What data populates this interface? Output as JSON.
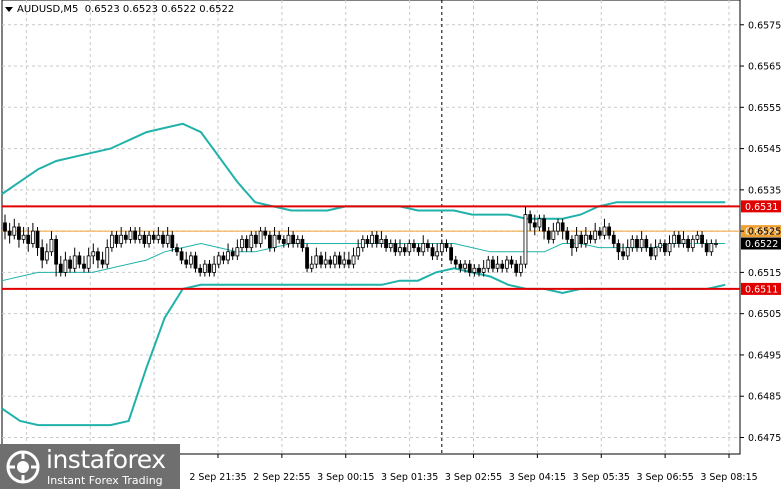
{
  "header": {
    "symbol": "AUDUSD,M5",
    "ohlc": "0.6523 0.6523 0.6522 0.6522"
  },
  "colors": {
    "background": "#ffffff",
    "grid": "#c9c9c9",
    "axis": "#000000",
    "bands": "#20b2aa",
    "candle_bull": "#ffffff",
    "candle_bear": "#000000",
    "level_red": "#e00000",
    "level_orange": "#f0a030",
    "logo_bg": "#6f6f6f"
  },
  "logo": {
    "name": "instaforex",
    "tagline": "Instant Forex Trading",
    "icon": "instaforex-logo-icon"
  },
  "chart_data": {
    "type": "candlestick",
    "timeframe": "M5",
    "ylim": [
      0.6471,
      0.6581
    ],
    "y_ticks": [
      "0.6575",
      "0.6565",
      "0.6555",
      "0.6545",
      "0.6535",
      "0.6525",
      "0.6515",
      "0.6505",
      "0.6495",
      "0.6485",
      "0.6475"
    ],
    "x_ticks": [
      "2 Sep 21:35",
      "2 Sep 22:55",
      "3 Sep 00:15",
      "3 Sep 01:35",
      "3 Sep 02:55",
      "3 Sep 04:15",
      "3 Sep 05:35",
      "3 Sep 06:55",
      "3 Sep 08:15"
    ],
    "levels": [
      {
        "price": 0.6531,
        "label": "0.6531",
        "style": "line",
        "color": "#e00000"
      },
      {
        "price": 0.6525,
        "label": "0.6525",
        "style": "thin",
        "color": "#f0a030"
      },
      {
        "price": 0.6511,
        "label": "0.6511",
        "style": "line",
        "color": "#e00000"
      }
    ],
    "current_price": {
      "price": 0.6522,
      "label": "0.6522"
    },
    "vertical_marker_index": 94,
    "bollinger": {
      "upper": [
        0.6534,
        0.6537,
        0.654,
        0.6542,
        0.6543,
        0.6544,
        0.6545,
        0.6547,
        0.6549,
        0.655,
        0.6551,
        0.6549,
        0.6543,
        0.6537,
        0.6532,
        0.6531,
        0.653,
        0.653,
        0.653,
        0.6531,
        0.6531,
        0.6531,
        0.6531,
        0.653,
        0.653,
        0.653,
        0.6529,
        0.6529,
        0.6529,
        0.6528,
        0.6528,
        0.6528,
        0.6529,
        0.6531,
        0.6532,
        0.6532,
        0.6532,
        0.6532,
        0.6532,
        0.6532,
        0.6532
      ],
      "middle": [
        0.6513,
        0.6514,
        0.6515,
        0.6515,
        0.6515,
        0.6515,
        0.6516,
        0.6517,
        0.6518,
        0.652,
        0.6521,
        0.6522,
        0.6521,
        0.652,
        0.652,
        0.6521,
        0.6522,
        0.6522,
        0.6522,
        0.6522,
        0.6522,
        0.6522,
        0.6522,
        0.6522,
        0.6522,
        0.6522,
        0.6521,
        0.652,
        0.652,
        0.652,
        0.652,
        0.6522,
        0.6522,
        0.6521,
        0.6521,
        0.6521,
        0.6521,
        0.6522,
        0.6522,
        0.6522,
        0.6522
      ],
      "lower": [
        0.6482,
        0.6479,
        0.6478,
        0.6478,
        0.6478,
        0.6478,
        0.6478,
        0.6479,
        0.6492,
        0.6504,
        0.6511,
        0.6512,
        0.6512,
        0.6512,
        0.6512,
        0.6512,
        0.6512,
        0.6512,
        0.6512,
        0.6512,
        0.6512,
        0.6512,
        0.6513,
        0.6513,
        0.6515,
        0.6516,
        0.6515,
        0.6514,
        0.6512,
        0.6511,
        0.6511,
        0.651,
        0.6511,
        0.6511,
        0.6511,
        0.6511,
        0.6511,
        0.6511,
        0.6511,
        0.6511,
        0.6512
      ]
    },
    "candles": [
      [
        0.6527,
        0.6525,
        0.6529,
        0.6523
      ],
      [
        0.6525,
        0.6524,
        0.6527,
        0.6522
      ],
      [
        0.6524,
        0.6526,
        0.6528,
        0.6523
      ],
      [
        0.6526,
        0.6523,
        0.6527,
        0.6521
      ],
      [
        0.6523,
        0.6524,
        0.6526,
        0.6522
      ],
      [
        0.6524,
        0.6522,
        0.6526,
        0.652
      ],
      [
        0.6522,
        0.6525,
        0.6527,
        0.6521
      ],
      [
        0.6525,
        0.6521,
        0.6526,
        0.6519
      ],
      [
        0.6521,
        0.6518,
        0.6523,
        0.6516
      ],
      [
        0.6518,
        0.652,
        0.6522,
        0.6517
      ],
      [
        0.652,
        0.6523,
        0.6525,
        0.6519
      ],
      [
        0.6523,
        0.6517,
        0.6524,
        0.6514
      ],
      [
        0.6517,
        0.6515,
        0.6519,
        0.6514
      ],
      [
        0.6515,
        0.6518,
        0.652,
        0.6514
      ],
      [
        0.6518,
        0.6516,
        0.6519,
        0.6515
      ],
      [
        0.6516,
        0.6519,
        0.6521,
        0.6515
      ],
      [
        0.6519,
        0.6517,
        0.652,
        0.6516
      ],
      [
        0.6517,
        0.6516,
        0.6519,
        0.6515
      ],
      [
        0.6516,
        0.6519,
        0.6521,
        0.6515
      ],
      [
        0.6519,
        0.652,
        0.6522,
        0.6517
      ],
      [
        0.652,
        0.6518,
        0.6521,
        0.6516
      ],
      [
        0.6518,
        0.6517,
        0.652,
        0.6516
      ],
      [
        0.6517,
        0.6521,
        0.6523,
        0.6516
      ],
      [
        0.6521,
        0.6524,
        0.6525,
        0.652
      ],
      [
        0.6524,
        0.6522,
        0.6525,
        0.6521
      ],
      [
        0.6522,
        0.6524,
        0.6526,
        0.6521
      ],
      [
        0.6524,
        0.6523,
        0.6525,
        0.6522
      ],
      [
        0.6523,
        0.6525,
        0.6526,
        0.6522
      ],
      [
        0.6525,
        0.6523,
        0.6526,
        0.6522
      ],
      [
        0.6523,
        0.6524,
        0.6526,
        0.6522
      ],
      [
        0.6524,
        0.6522,
        0.6525,
        0.6521
      ],
      [
        0.6522,
        0.6524,
        0.6525,
        0.6521
      ],
      [
        0.6524,
        0.6523,
        0.6525,
        0.6522
      ],
      [
        0.6523,
        0.6524,
        0.6526,
        0.6522
      ],
      [
        0.6524,
        0.6522,
        0.6525,
        0.6521
      ],
      [
        0.6522,
        0.6524,
        0.6526,
        0.6521
      ],
      [
        0.6524,
        0.6521,
        0.6525,
        0.652
      ],
      [
        0.6521,
        0.652,
        0.6522,
        0.6519
      ],
      [
        0.652,
        0.6518,
        0.6521,
        0.6517
      ],
      [
        0.6518,
        0.6517,
        0.652,
        0.6516
      ],
      [
        0.6517,
        0.6519,
        0.652,
        0.6516
      ],
      [
        0.6519,
        0.6516,
        0.652,
        0.6515
      ],
      [
        0.6516,
        0.6515,
        0.6517,
        0.6514
      ],
      [
        0.6515,
        0.6517,
        0.6518,
        0.6514
      ],
      [
        0.6517,
        0.6515,
        0.6518,
        0.6514
      ],
      [
        0.6515,
        0.6517,
        0.6519,
        0.6514
      ],
      [
        0.6517,
        0.6519,
        0.652,
        0.6516
      ],
      [
        0.6519,
        0.6518,
        0.652,
        0.6517
      ],
      [
        0.6518,
        0.652,
        0.6522,
        0.6517
      ],
      [
        0.652,
        0.6519,
        0.6521,
        0.6518
      ],
      [
        0.6519,
        0.6521,
        0.6523,
        0.6518
      ],
      [
        0.6521,
        0.6523,
        0.6524,
        0.652
      ],
      [
        0.6523,
        0.6521,
        0.6524,
        0.652
      ],
      [
        0.6521,
        0.6524,
        0.6525,
        0.652
      ],
      [
        0.6524,
        0.6522,
        0.6525,
        0.6521
      ],
      [
        0.6522,
        0.6525,
        0.6526,
        0.6521
      ],
      [
        0.6525,
        0.6524,
        0.6526,
        0.6523
      ],
      [
        0.6524,
        0.6521,
        0.6525,
        0.652
      ],
      [
        0.6521,
        0.6524,
        0.6526,
        0.652
      ],
      [
        0.6524,
        0.6523,
        0.6525,
        0.6522
      ],
      [
        0.6523,
        0.6522,
        0.6524,
        0.6521
      ],
      [
        0.6522,
        0.6524,
        0.6526,
        0.6521
      ],
      [
        0.6524,
        0.6522,
        0.6525,
        0.6521
      ],
      [
        0.6522,
        0.6523,
        0.6524,
        0.6521
      ],
      [
        0.6523,
        0.6521,
        0.6524,
        0.652
      ],
      [
        0.6521,
        0.6516,
        0.6522,
        0.6515
      ],
      [
        0.6516,
        0.6517,
        0.6519,
        0.6515
      ],
      [
        0.6517,
        0.6519,
        0.6521,
        0.6516
      ],
      [
        0.6519,
        0.6517,
        0.652,
        0.6516
      ],
      [
        0.6517,
        0.6518,
        0.652,
        0.6516
      ],
      [
        0.6518,
        0.6517,
        0.6519,
        0.6516
      ],
      [
        0.6517,
        0.6519,
        0.652,
        0.6516
      ],
      [
        0.6519,
        0.6517,
        0.652,
        0.6516
      ],
      [
        0.6517,
        0.6518,
        0.652,
        0.6516
      ],
      [
        0.6518,
        0.6517,
        0.652,
        0.6516
      ],
      [
        0.6517,
        0.6519,
        0.6521,
        0.6516
      ],
      [
        0.6519,
        0.6521,
        0.6523,
        0.6518
      ],
      [
        0.6521,
        0.6523,
        0.6524,
        0.652
      ],
      [
        0.6523,
        0.6522,
        0.6524,
        0.6521
      ],
      [
        0.6522,
        0.6524,
        0.6525,
        0.6521
      ],
      [
        0.6524,
        0.6522,
        0.6525,
        0.6521
      ],
      [
        0.6522,
        0.6523,
        0.6525,
        0.6521
      ],
      [
        0.6523,
        0.6521,
        0.6524,
        0.652
      ],
      [
        0.6521,
        0.6522,
        0.6523,
        0.652
      ],
      [
        0.6522,
        0.652,
        0.6523,
        0.6519
      ],
      [
        0.652,
        0.6521,
        0.6523,
        0.6519
      ],
      [
        0.6521,
        0.652,
        0.6522,
        0.6519
      ],
      [
        0.652,
        0.6522,
        0.6523,
        0.6519
      ],
      [
        0.6522,
        0.6521,
        0.6523,
        0.652
      ],
      [
        0.6521,
        0.652,
        0.6522,
        0.6519
      ],
      [
        0.652,
        0.6522,
        0.6524,
        0.6519
      ],
      [
        0.6522,
        0.6521,
        0.6523,
        0.652
      ],
      [
        0.6521,
        0.6519,
        0.6522,
        0.6518
      ],
      [
        0.6519,
        0.652,
        0.6522,
        0.6518
      ],
      [
        0.652,
        0.6522,
        0.6523,
        0.6519
      ],
      [
        0.6522,
        0.6521,
        0.6523,
        0.652
      ],
      [
        0.6521,
        0.6518,
        0.6522,
        0.6517
      ],
      [
        0.6518,
        0.6517,
        0.6519,
        0.6516
      ],
      [
        0.6517,
        0.6516,
        0.6518,
        0.6515
      ],
      [
        0.6516,
        0.6517,
        0.6518,
        0.6515
      ],
      [
        0.6517,
        0.6515,
        0.6518,
        0.6514
      ],
      [
        0.6515,
        0.6516,
        0.6517,
        0.6514
      ],
      [
        0.6516,
        0.6515,
        0.6517,
        0.6514
      ],
      [
        0.6515,
        0.6516,
        0.6518,
        0.6514
      ],
      [
        0.6516,
        0.6518,
        0.6519,
        0.6515
      ],
      [
        0.6518,
        0.6516,
        0.6519,
        0.6515
      ],
      [
        0.6516,
        0.6517,
        0.6519,
        0.6515
      ],
      [
        0.6517,
        0.6516,
        0.6518,
        0.6515
      ],
      [
        0.6516,
        0.6518,
        0.6519,
        0.6515
      ],
      [
        0.6518,
        0.6517,
        0.6519,
        0.6516
      ],
      [
        0.6517,
        0.6515,
        0.6518,
        0.6514
      ],
      [
        0.6515,
        0.6517,
        0.6519,
        0.6514
      ],
      [
        0.6517,
        0.6529,
        0.6531,
        0.6516
      ],
      [
        0.6529,
        0.6527,
        0.653,
        0.6525
      ],
      [
        0.6527,
        0.6526,
        0.6529,
        0.6524
      ],
      [
        0.6526,
        0.6528,
        0.6529,
        0.6525
      ],
      [
        0.6528,
        0.6525,
        0.6529,
        0.6523
      ],
      [
        0.6525,
        0.6523,
        0.6526,
        0.6522
      ],
      [
        0.6523,
        0.6525,
        0.6527,
        0.6522
      ],
      [
        0.6525,
        0.6527,
        0.6528,
        0.6524
      ],
      [
        0.6527,
        0.6525,
        0.6528,
        0.6523
      ],
      [
        0.6525,
        0.6523,
        0.6526,
        0.6522
      ],
      [
        0.6523,
        0.6521,
        0.6524,
        0.6519
      ],
      [
        0.6521,
        0.6524,
        0.6526,
        0.652
      ],
      [
        0.6524,
        0.6522,
        0.6525,
        0.6521
      ],
      [
        0.6522,
        0.6524,
        0.6526,
        0.6521
      ],
      [
        0.6524,
        0.6523,
        0.6525,
        0.6522
      ],
      [
        0.6523,
        0.6525,
        0.6527,
        0.6522
      ],
      [
        0.6525,
        0.6524,
        0.6526,
        0.6523
      ],
      [
        0.6524,
        0.6526,
        0.6528,
        0.6523
      ],
      [
        0.6526,
        0.6524,
        0.6527,
        0.6523
      ],
      [
        0.6524,
        0.6522,
        0.6525,
        0.6521
      ],
      [
        0.6522,
        0.652,
        0.6523,
        0.6518
      ],
      [
        0.652,
        0.6519,
        0.6522,
        0.6518
      ],
      [
        0.6519,
        0.6521,
        0.6523,
        0.6518
      ],
      [
        0.6521,
        0.6523,
        0.6524,
        0.652
      ],
      [
        0.6523,
        0.6521,
        0.6524,
        0.652
      ],
      [
        0.6521,
        0.6523,
        0.6525,
        0.652
      ],
      [
        0.6523,
        0.6521,
        0.6524,
        0.652
      ],
      [
        0.6521,
        0.6519,
        0.6522,
        0.6518
      ],
      [
        0.6519,
        0.6521,
        0.6523,
        0.6518
      ],
      [
        0.6521,
        0.6522,
        0.6523,
        0.652
      ],
      [
        0.6522,
        0.652,
        0.6523,
        0.6519
      ],
      [
        0.652,
        0.6522,
        0.6524,
        0.6519
      ],
      [
        0.6522,
        0.6524,
        0.6525,
        0.6521
      ],
      [
        0.6524,
        0.6522,
        0.6525,
        0.6521
      ],
      [
        0.6522,
        0.6523,
        0.6525,
        0.6521
      ],
      [
        0.6523,
        0.6521,
        0.6524,
        0.652
      ],
      [
        0.6521,
        0.6523,
        0.6524,
        0.652
      ],
      [
        0.6523,
        0.6524,
        0.6525,
        0.6522
      ],
      [
        0.6524,
        0.6522,
        0.6525,
        0.6521
      ],
      [
        0.6522,
        0.652,
        0.6523,
        0.6519
      ],
      [
        0.652,
        0.6522,
        0.6523,
        0.6519
      ],
      [
        0.6522,
        0.6522,
        0.6523,
        0.6521
      ]
    ]
  }
}
